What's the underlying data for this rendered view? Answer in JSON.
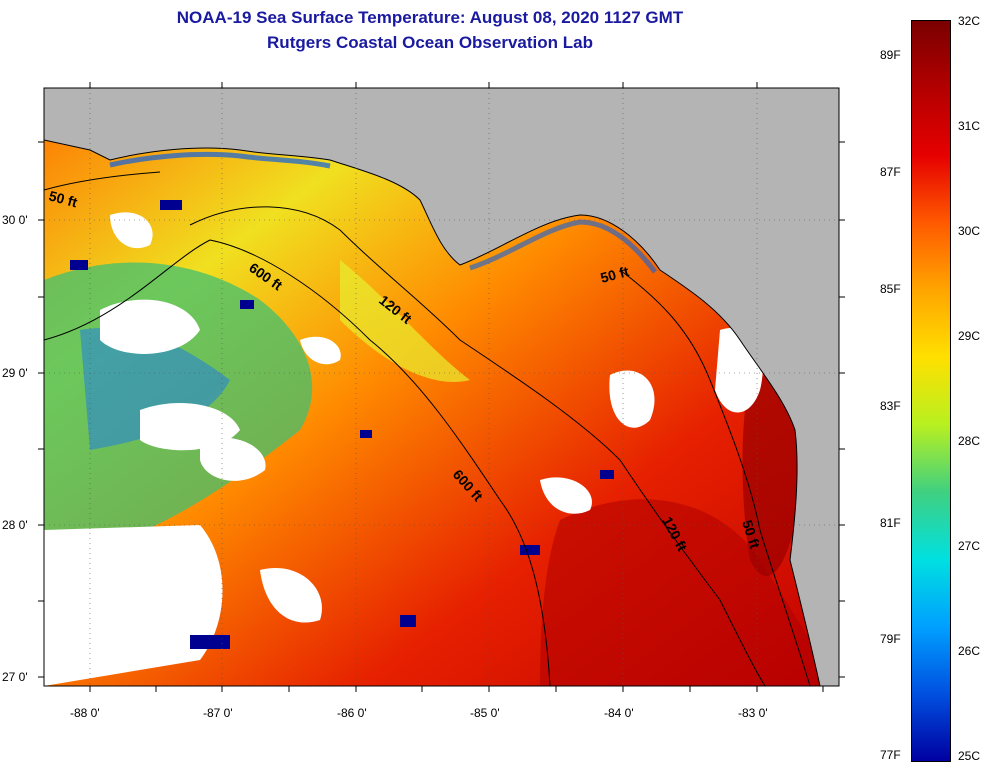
{
  "header": {
    "title": "NOAA-19 Sea Surface Temperature:  August 08, 2020 1127 GMT",
    "subtitle": "Rutgers Coastal Ocean Observation Lab"
  },
  "axes": {
    "lat_labels": [
      "30 0'",
      "29 0'",
      "28 0'",
      "27 0'"
    ],
    "lon_labels": [
      "-88 0'",
      "-87 0'",
      "-86 0'",
      "-85 0'",
      "-84 0'",
      "-83 0'"
    ]
  },
  "contours": {
    "labels": [
      "50 ft",
      "600 ft",
      "120 ft",
      "50 ft",
      "600 ft",
      "120 ft",
      "50 ft"
    ]
  },
  "colorbar": {
    "celsius_labels": [
      "32C",
      "31C",
      "30C",
      "29C",
      "28C",
      "27C",
      "26C",
      "25C"
    ],
    "fahrenheit_labels": [
      "89F",
      "87F",
      "85F",
      "83F",
      "81F",
      "79F",
      "77F"
    ],
    "colors": [
      "#7a0000",
      "#b30000",
      "#e60000",
      "#ff5a00",
      "#ffa500",
      "#ffe000",
      "#b8f020",
      "#40d080",
      "#00e0e0",
      "#00a0ff",
      "#0050e0",
      "#0000a0"
    ]
  },
  "map_colors": {
    "land": "#b4b4b4",
    "cloud": "#ffffff",
    "frame": "#000000"
  }
}
